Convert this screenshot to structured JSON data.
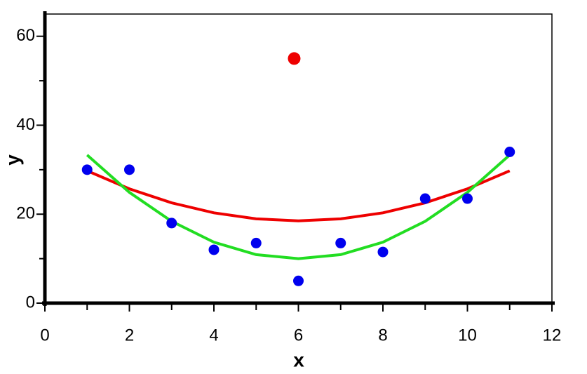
{
  "chart_data": {
    "type": "scatter",
    "xlabel": "x",
    "ylabel": "y",
    "xlim": [
      0,
      12
    ],
    "ylim": [
      0,
      65
    ],
    "xticks": [
      0,
      2,
      4,
      6,
      8,
      10,
      12
    ],
    "yticks": [
      0,
      20,
      40,
      60
    ],
    "xminorticks": [
      1,
      3,
      5,
      7,
      9,
      11
    ],
    "yminorticks": [
      10,
      30,
      50
    ],
    "series": [
      {
        "mode": "markers",
        "color": "#0000ee",
        "x": [
          1,
          2,
          3,
          4,
          5,
          6,
          7,
          8,
          9,
          10,
          11
        ],
        "values": [
          30,
          30,
          18,
          12,
          13.5,
          5,
          13.5,
          11.5,
          23.5,
          23.5,
          34
        ]
      },
      {
        "mode": "markers",
        "color": "#ee0000",
        "x": [
          5.9
        ],
        "values": [
          55
        ]
      },
      {
        "mode": "line",
        "color": "#ee0000",
        "x": [
          1,
          2,
          3,
          4,
          5,
          6,
          7,
          8,
          9,
          10,
          11
        ],
        "values": [
          29.75,
          25.7,
          22.55,
          20.3,
          18.95,
          18.5,
          18.95,
          20.3,
          22.55,
          25.7,
          29.75
        ]
      },
      {
        "mode": "line",
        "color": "#22dd22",
        "x": [
          1,
          2,
          3,
          4,
          5,
          6,
          7,
          8,
          9,
          10,
          11
        ],
        "values": [
          33.3,
          24.9,
          18.4,
          13.7,
          10.9,
          10,
          10.9,
          13.7,
          18.4,
          24.9,
          33.3
        ]
      }
    ]
  }
}
